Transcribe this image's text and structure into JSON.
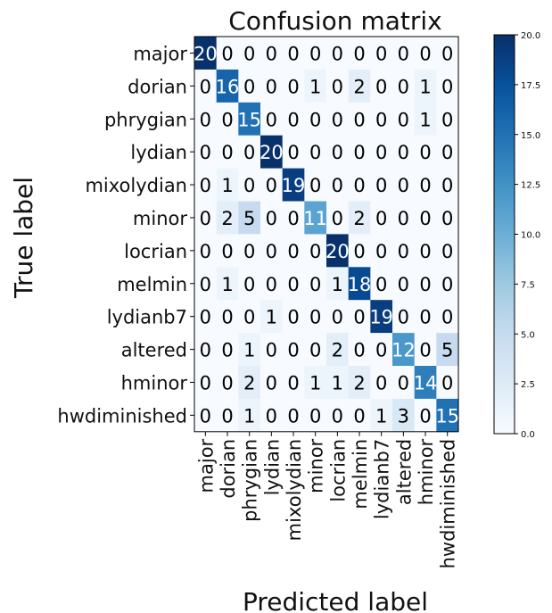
{
  "chart_data": {
    "type": "heatmap",
    "title": "Confusion matrix",
    "xlabel": "Predicted label",
    "ylabel": "True label",
    "labels": [
      "major",
      "dorian",
      "phrygian",
      "lydian",
      "mixolydian",
      "minor",
      "locrian",
      "melmin",
      "lydianb7",
      "altered",
      "hminor",
      "hwdiminished"
    ],
    "matrix": [
      [
        20,
        0,
        0,
        0,
        0,
        0,
        0,
        0,
        0,
        0,
        0,
        0
      ],
      [
        0,
        16,
        0,
        0,
        0,
        1,
        0,
        2,
        0,
        0,
        1,
        0
      ],
      [
        0,
        0,
        15,
        0,
        0,
        0,
        0,
        0,
        0,
        0,
        1,
        0
      ],
      [
        0,
        0,
        0,
        20,
        0,
        0,
        0,
        0,
        0,
        0,
        0,
        0
      ],
      [
        0,
        1,
        0,
        0,
        19,
        0,
        0,
        0,
        0,
        0,
        0,
        0
      ],
      [
        0,
        2,
        5,
        0,
        0,
        11,
        0,
        2,
        0,
        0,
        0,
        0
      ],
      [
        0,
        0,
        0,
        0,
        0,
        0,
        20,
        0,
        0,
        0,
        0,
        0
      ],
      [
        0,
        1,
        0,
        0,
        0,
        0,
        1,
        18,
        0,
        0,
        0,
        0
      ],
      [
        0,
        0,
        0,
        1,
        0,
        0,
        0,
        0,
        19,
        0,
        0,
        0
      ],
      [
        0,
        0,
        1,
        0,
        0,
        0,
        2,
        0,
        0,
        12,
        0,
        5
      ],
      [
        0,
        0,
        2,
        0,
        0,
        1,
        1,
        2,
        0,
        0,
        14,
        0
      ],
      [
        0,
        0,
        1,
        0,
        0,
        0,
        0,
        0,
        1,
        3,
        0,
        15
      ]
    ],
    "colormap": "Blues",
    "value_range": [
      0,
      20
    ],
    "colorbar_ticks": [
      "0.0",
      "2.5",
      "5.0",
      "7.5",
      "10.0",
      "12.5",
      "15.0",
      "17.5",
      "20.0"
    ],
    "grid": false,
    "colorbar": "right"
  }
}
